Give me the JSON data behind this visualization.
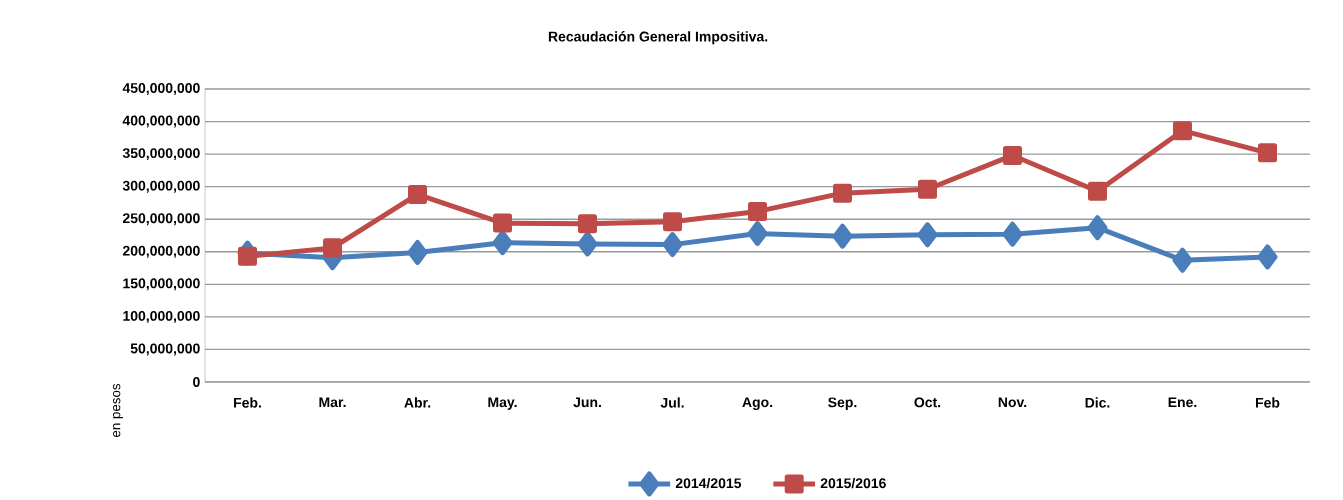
{
  "chart_data": {
    "type": "line",
    "title": "Recaudación General Impositiva.",
    "ylabel": "en pesos",
    "categories": [
      "Feb.",
      "Mar.",
      "Abr.",
      "May.",
      "Jun.",
      "Jul.",
      "Ago.",
      "Sep.",
      "Oct.",
      "Nov.",
      "Dic.",
      "Ene.",
      "Feb"
    ],
    "series": [
      {
        "name": "2014/2015",
        "color": "#4a7ebb",
        "marker": "diamond",
        "values": [
          198000000,
          191000000,
          199000000,
          214000000,
          212000000,
          211000000,
          228000000,
          224000000,
          226000000,
          227000000,
          237000000,
          187000000,
          192000000
        ]
      },
      {
        "name": "2015/2016",
        "color": "#be4b48",
        "marker": "square",
        "values": [
          193000000,
          206000000,
          288000000,
          244000000,
          243000000,
          246000000,
          262000000,
          290000000,
          296000000,
          348000000,
          293000000,
          386000000,
          352000000
        ]
      }
    ],
    "ylim": [
      0,
      450000000
    ],
    "yticks": [
      0,
      {
        "value": 50000000,
        "label": "50,000,000"
      },
      {
        "value": 100000000,
        "label": "100,000,000"
      },
      {
        "value": 150000000,
        "label": "150,000,000"
      },
      {
        "value": 200000000,
        "label": "200,000,000"
      },
      {
        "value": 250000000,
        "label": "250,000,000"
      },
      {
        "value": 300000000,
        "label": "300,000,000"
      },
      {
        "value": 350000000,
        "label": "350,000,000"
      },
      {
        "value": 400000000,
        "label": "400,000,000"
      },
      {
        "value": 450000000,
        "label": "450,000,000"
      }
    ],
    "grid": "y",
    "legend": "bottom",
    "line_style": "solid"
  }
}
